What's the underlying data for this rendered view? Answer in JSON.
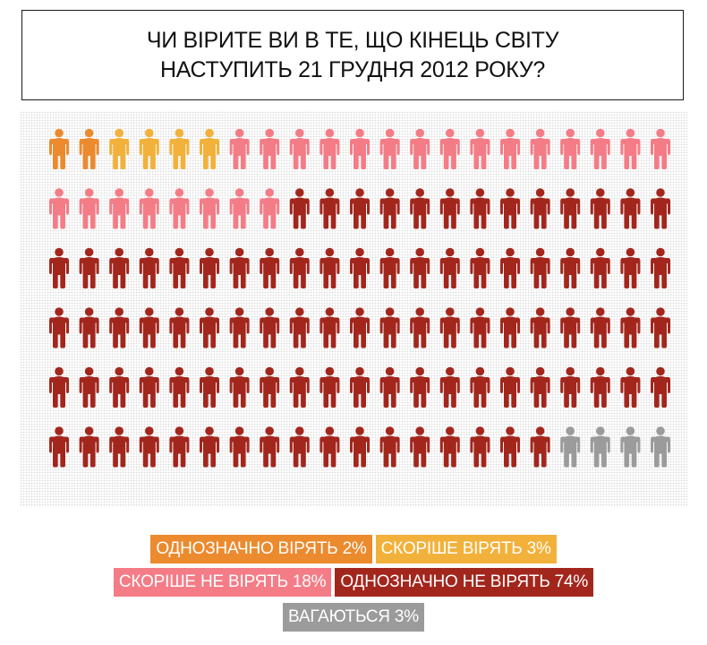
{
  "title": {
    "line1": "ЧИ ВІРИТЕ ВИ В ТЕ, ЩО КІНЕЦЬ СВІТУ",
    "line2": "НАСТУПИТЬ 21 ГРУДНЯ 2012 РОКУ?"
  },
  "colors": {
    "definitely_believe": "#ec8a2e",
    "rather_believe": "#f2b13a",
    "rather_not_believe": "#f47c86",
    "definitely_not_believe": "#a3261d",
    "hesitant": "#9b9b9b"
  },
  "chart_data": {
    "type": "pictogram",
    "rows": 6,
    "columns": 21,
    "icon": "person-icon",
    "categories": [
      {
        "label": "ОДНОЗНАЧНО ВІРЯТЬ 2%",
        "value": 2,
        "unit": "%",
        "color": "#ec8a2e",
        "icon_count": 2
      },
      {
        "label": "СКОРІШЕ ВІРЯТЬ 3%",
        "value": 3,
        "unit": "%",
        "color": "#f2b13a",
        "icon_count": 4
      },
      {
        "label": "СКОРІШЕ НЕ ВІРЯТЬ 18%",
        "value": 18,
        "unit": "%",
        "color": "#f47c86",
        "icon_count": 23
      },
      {
        "label": "ОДНОЗНАЧНО НЕ ВІРЯТЬ 74%",
        "value": 74,
        "unit": "%",
        "color": "#a3261d",
        "icon_count": 93
      },
      {
        "label": "ВАГАЮТЬСЯ 3%",
        "value": 3,
        "unit": "%",
        "color": "#9b9b9b",
        "icon_count": 4
      }
    ]
  },
  "legend": {
    "rows": [
      [
        {
          "label": "ОДНОЗНАЧНО ВІРЯТЬ 2%",
          "color": "#ec8a2e"
        },
        {
          "label": "СКОРІШЕ ВІРЯТЬ 3%",
          "color": "#f2b13a"
        }
      ],
      [
        {
          "label": "СКОРІШЕ НЕ ВІРЯТЬ 18%",
          "color": "#f47c86"
        },
        {
          "label": "ОДНОЗНАЧНО НЕ ВІРЯТЬ 74%",
          "color": "#a3261d"
        }
      ],
      [
        {
          "label": "ВАГАЮТЬСЯ 3%",
          "color": "#9b9b9b"
        }
      ]
    ]
  }
}
